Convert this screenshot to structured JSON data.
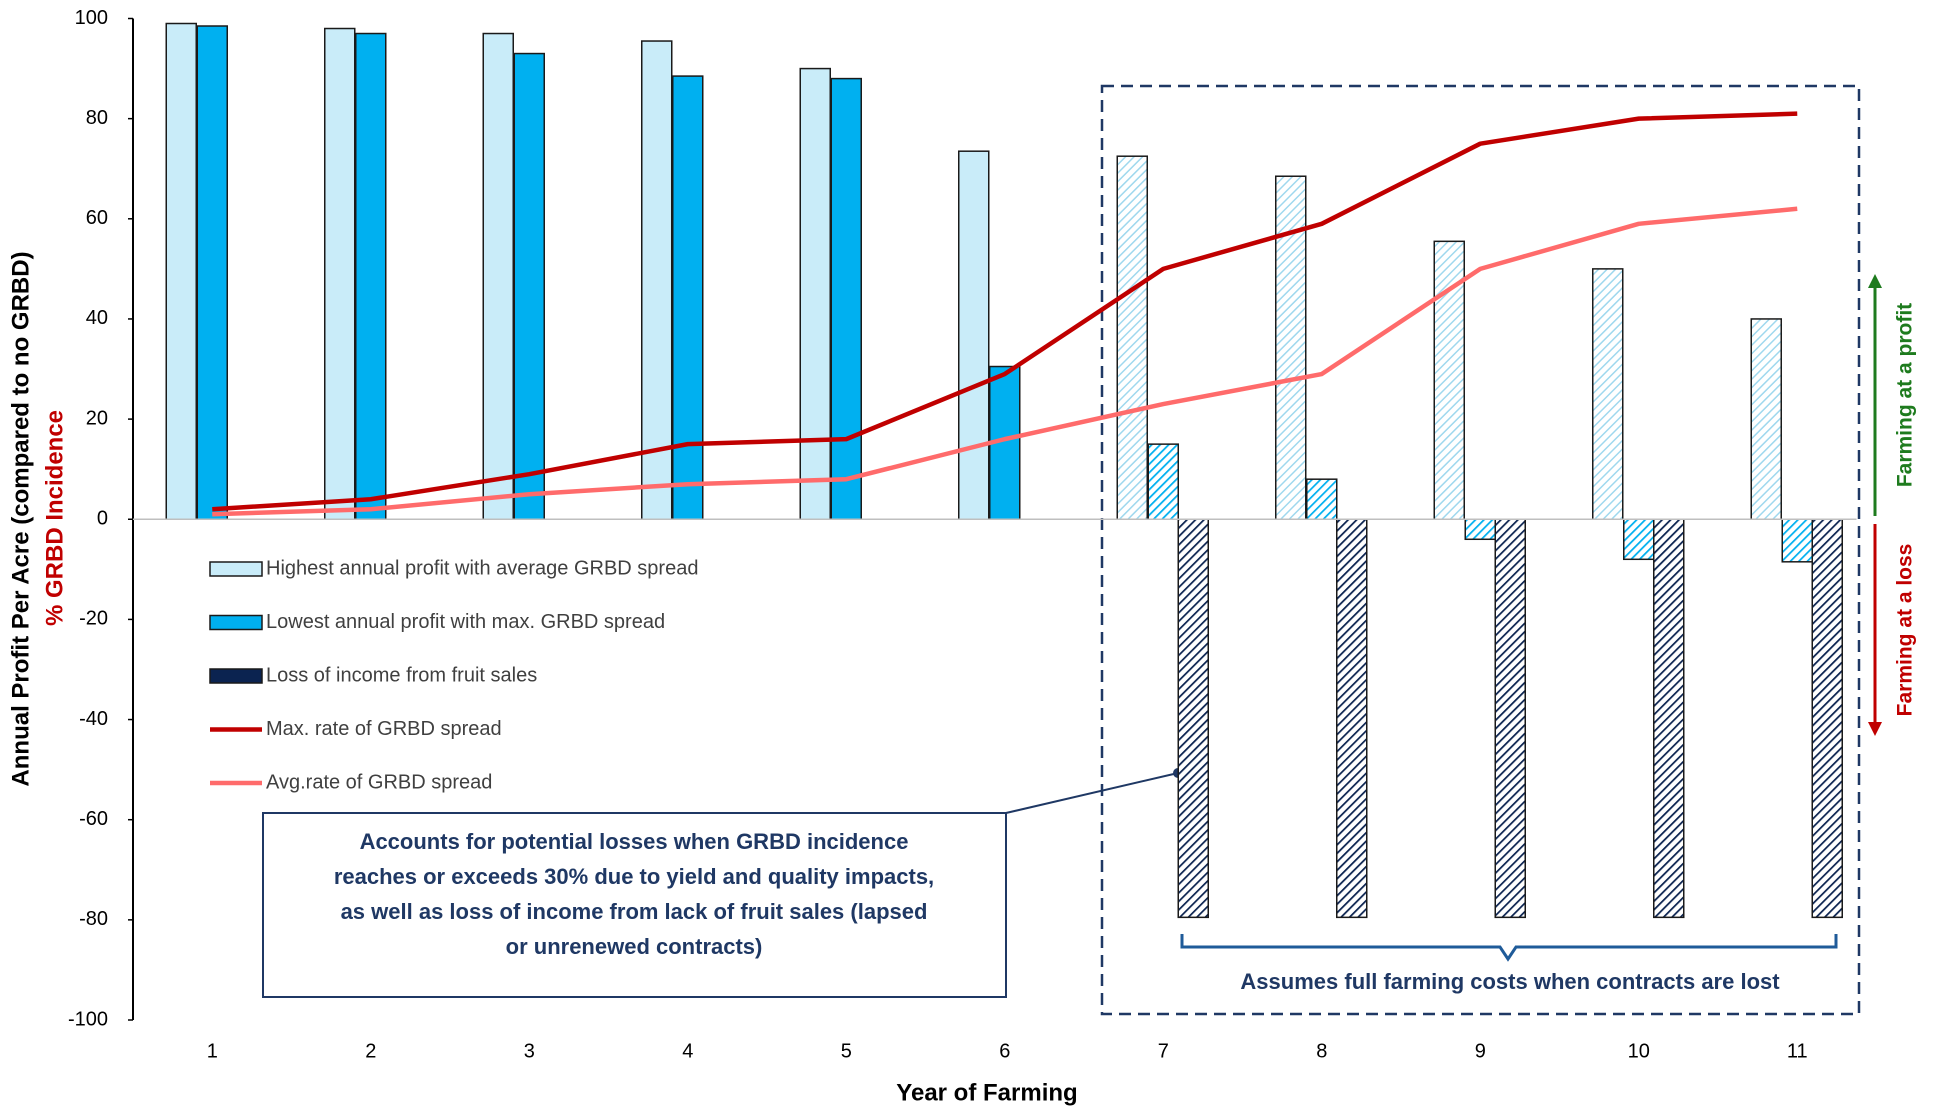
{
  "chart_data": {
    "type": "bar",
    "xlabel": "Year of Farming",
    "ylabel": "Annual Profit Per Acre (compared to no GRBD)",
    "ylabel_secondary": "% GRBD Incidence",
    "categories": [
      "1",
      "2",
      "3",
      "4",
      "5",
      "6",
      "7",
      "8",
      "9",
      "10",
      "11"
    ],
    "ylim": [
      -100,
      100
    ],
    "yticks": [
      -100,
      -80,
      -60,
      -40,
      -20,
      0,
      20,
      40,
      60,
      80,
      100
    ],
    "series": [
      {
        "name": "Highest annual profit with average GRBD spread",
        "type": "bar",
        "color": "#c9ecf9",
        "values": [
          99,
          98,
          97,
          95.5,
          90,
          73.5,
          72.5,
          68.5,
          55.5,
          50,
          40
        ]
      },
      {
        "name": "Lowest annual profit with max. GRBD spread",
        "type": "bar",
        "color": "#00b0f0",
        "values": [
          98.5,
          97,
          93,
          88.5,
          88,
          30.5,
          15,
          8,
          -4,
          -8,
          -8.5
        ]
      },
      {
        "name": "Loss of income from fruit sales",
        "type": "bar",
        "color": "#0b2350",
        "values": [
          null,
          null,
          null,
          null,
          null,
          null,
          -79.5,
          -79.5,
          -79.5,
          -79.5,
          -79.5
        ]
      },
      {
        "name": "Max. rate of GRBD spread",
        "type": "line",
        "color": "#c00000",
        "values": [
          2,
          4,
          9,
          15,
          16,
          29,
          50,
          59,
          75,
          80,
          81
        ]
      },
      {
        "name": "Avg.rate of GRBD spread",
        "type": "line",
        "color": "#ff6b6b",
        "values": [
          1,
          2,
          5,
          7,
          8,
          16,
          23,
          29,
          50,
          59,
          62
        ]
      }
    ],
    "annotations": [
      {
        "lines": [
          "Accounts for potential losses when GRBD incidence",
          "reaches or exceeds 30% due to yield and quality impacts,",
          "as well as loss of income from lack of fruit sales (lapsed",
          "or unrenewed contracts)"
        ]
      },
      {
        "text": "Assumes full farming costs when contracts are lost"
      }
    ],
    "side_labels": [
      {
        "text": "Farming at a profit",
        "color": "#1e7b1e"
      },
      {
        "text": "Farming at a loss",
        "color": "#c00000"
      }
    ]
  }
}
